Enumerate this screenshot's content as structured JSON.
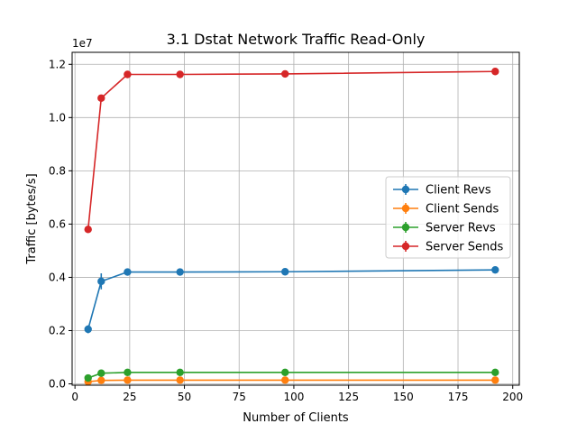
{
  "chart_data": {
    "type": "line",
    "title": "3.1 Dstat Network Traffic Read-Only",
    "xlabel": "Number of Clients",
    "ylabel": "Traffic [bytes/s]",
    "y_offset_text": "1e7",
    "y_scale": 10000000,
    "xlim": [
      -1.3,
      203
    ],
    "ylim": [
      -0.05,
      12.45
    ],
    "xticks": [
      0,
      25,
      50,
      75,
      100,
      125,
      150,
      175,
      200
    ],
    "xtick_labels": [
      "0",
      "25",
      "50",
      "75",
      "100",
      "125",
      "150",
      "175",
      "200"
    ],
    "yticks": [
      0,
      0.2,
      0.4,
      0.6,
      0.8,
      1.0,
      1.2
    ],
    "ytick_labels": [
      "0.0",
      "0.2",
      "0.4",
      "0.6",
      "0.8",
      "1.0",
      "1.2"
    ],
    "grid": true,
    "legend_position": "center-right",
    "x": [
      6,
      12,
      24,
      48,
      96,
      192
    ],
    "series": [
      {
        "name": "Client Revs",
        "color": "#1f77b4",
        "values": [
          0.205,
          0.385,
          0.42,
          0.42,
          0.421,
          0.428
        ],
        "errors": [
          0.015,
          0.03,
          0.01,
          0.005,
          0.005,
          0.005
        ]
      },
      {
        "name": "Client Sends",
        "color": "#ff7f0e",
        "values": [
          0.008,
          0.013,
          0.014,
          0.014,
          0.014,
          0.014
        ],
        "errors": [
          0.001,
          0.001,
          0.001,
          0.001,
          0.001,
          0.001
        ]
      },
      {
        "name": "Server Revs",
        "color": "#2ca02c",
        "values": [
          0.022,
          0.04,
          0.043,
          0.043,
          0.043,
          0.043
        ],
        "errors": [
          0.002,
          0.002,
          0.001,
          0.001,
          0.001,
          0.001
        ]
      },
      {
        "name": "Server Sends",
        "color": "#d62728",
        "values": [
          0.58,
          1.073,
          1.162,
          1.162,
          1.164,
          1.173
        ],
        "errors": [
          0.005,
          0.01,
          0.005,
          0.005,
          0.005,
          0.005
        ]
      }
    ]
  }
}
